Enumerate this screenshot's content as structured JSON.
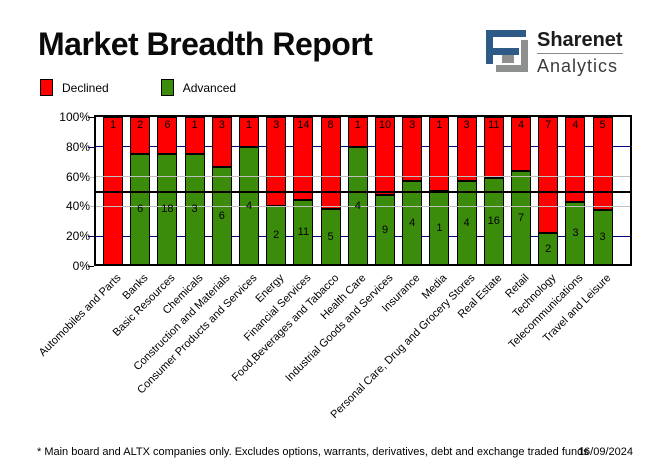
{
  "header": {
    "title": "Market Breadth Report",
    "logo": {
      "name": "Sharenet",
      "sub": "Analytics",
      "blue": "#2d5a87",
      "gray": "#8e9090"
    }
  },
  "legend": {
    "items": [
      {
        "label": "Declined",
        "color": "#ff0000"
      },
      {
        "label": "Advanced",
        "color": "#3c8c0c"
      }
    ]
  },
  "chart_data": {
    "type": "bar",
    "stacked": true,
    "normalized": "each bar scaled to 100%, segment labels show company counts",
    "title": "Market Breadth Report",
    "categories": [
      "Automobiles and Parts",
      "Banks",
      "Basic Resources",
      "Chemicals",
      "Construction and Materials",
      "Consumer Products and Services",
      "Energy",
      "Financial Services",
      "Food,Beverages and Tabacco",
      "Health Care",
      "Industrial Goods and Services",
      "Insurance",
      "Media",
      "Personal Care, Drug and Grocery Stores",
      "Real Estate",
      "Retail",
      "Technology",
      "Telecommunications",
      "Travel and Leisure"
    ],
    "series": [
      {
        "name": "Declined",
        "color": "#ff0000",
        "values": [
          1,
          2,
          6,
          1,
          3,
          1,
          3,
          14,
          8,
          1,
          10,
          3,
          1,
          3,
          11,
          4,
          7,
          4,
          5
        ]
      },
      {
        "name": "Advanced",
        "color": "#3c8c0c",
        "values": [
          0,
          6,
          18,
          3,
          6,
          4,
          2,
          11,
          5,
          4,
          9,
          4,
          1,
          4,
          16,
          7,
          2,
          3,
          3
        ]
      }
    ],
    "y_axis": {
      "ticks": [
        "100%",
        "80%",
        "60%",
        "40%",
        "20%",
        "0%"
      ],
      "range": [
        0,
        100
      ]
    },
    "gridlines": {
      "navy_at": [
        80,
        20
      ],
      "gray_at": [
        60,
        40
      ],
      "bold_black_at": 50,
      "navy_color": "#000080",
      "gray_color": "#c0c0c0",
      "black_color": "#000000"
    },
    "legend_position": "top-left",
    "xlabel": "",
    "ylabel": ""
  },
  "footer": {
    "note": "* Main board and ALTX companies only. Excludes options, warrants, derivatives, debt and exchange traded funds",
    "date": "16/09/2024"
  }
}
